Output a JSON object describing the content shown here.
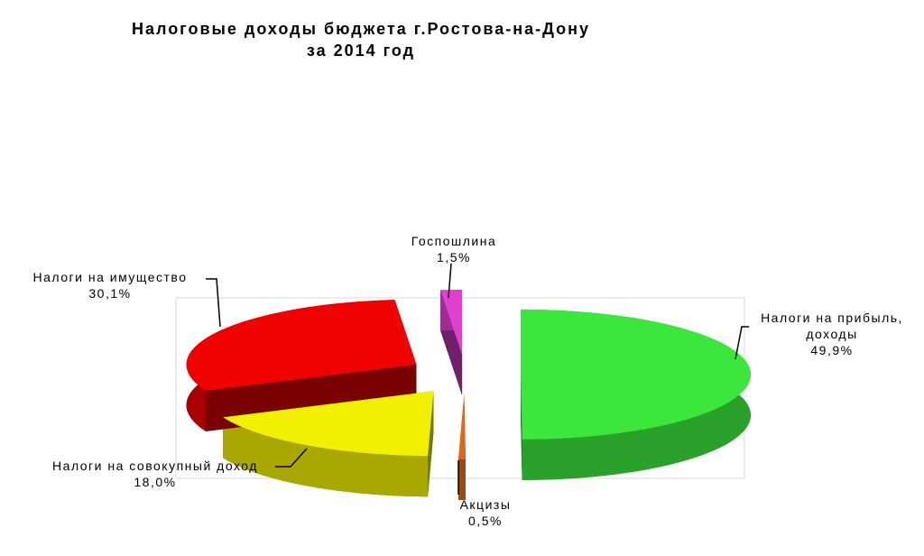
{
  "chart_data": {
    "type": "pie",
    "title": "Налоговые  доходы бюджета г.Ростова-на-Дону\nза 2014 год",
    "categories": [
      "Налоги на прибыль, доходы",
      "Акцизы",
      "Налоги на совокупный доход",
      "Налоги на имущество",
      "Госпошлина"
    ],
    "values": [
      49.9,
      0.5,
      18.0,
      30.1,
      1.5
    ],
    "value_labels": [
      "49,9%",
      "0,5%",
      "18,0%",
      "30,1%",
      "1,5%"
    ],
    "colors": [
      "#3ce63c",
      "#e0661a",
      "#f0f000",
      "#f00000",
      "#e040d0"
    ]
  }
}
